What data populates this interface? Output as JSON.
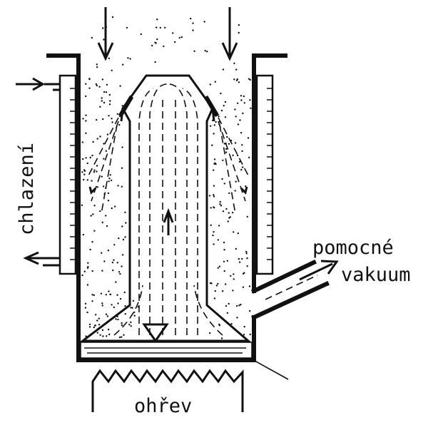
{
  "labels": {
    "cooling": "chlazení",
    "aux_vacuum_1": "pomocné",
    "aux_vacuum_2": "vakuum",
    "heating": "ohřev"
  },
  "colors": {
    "ink": "#111111",
    "background": "#ffffff"
  }
}
